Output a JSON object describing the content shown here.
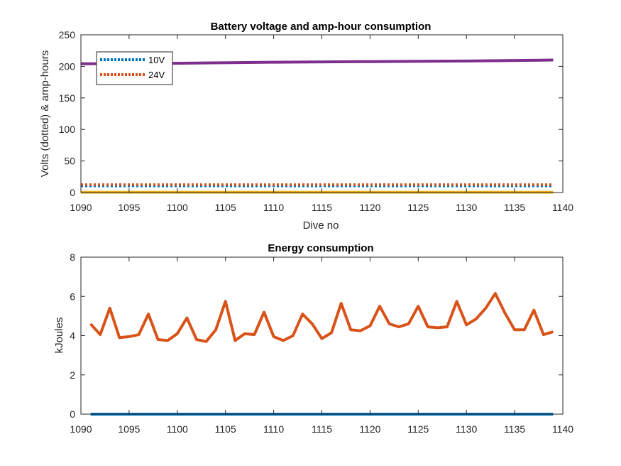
{
  "chart_data": [
    {
      "type": "line",
      "title": "Battery voltage and amp-hour consumption",
      "xlabel": "Dive no",
      "ylabel": "Volts (dotted) & amp-hours",
      "xlim": [
        1090,
        1140
      ],
      "ylim": [
        0,
        250
      ],
      "xticks": [
        1090,
        1095,
        1100,
        1105,
        1110,
        1115,
        1120,
        1125,
        1130,
        1135,
        1140
      ],
      "yticks": [
        0,
        50,
        100,
        150,
        200,
        250
      ],
      "grid": false,
      "legend_position": "top-left",
      "legend": [
        "10V",
        "24V"
      ],
      "series": [
        {
          "name": "10V",
          "style": "dotted",
          "color": "#0072BD",
          "x": [
            1090,
            1139
          ],
          "y": [
            10.5,
            10.5
          ]
        },
        {
          "name": "24V",
          "style": "dotted",
          "color": "#D95319",
          "x": [
            1090,
            1139
          ],
          "y": [
            12.5,
            12.5
          ]
        },
        {
          "style": "solid",
          "color": "#EDB120",
          "x": [
            1090,
            1139
          ],
          "y": [
            0.5,
            0.5
          ]
        },
        {
          "style": "solid",
          "color": "#7E2F8E",
          "x": [
            1090,
            1100,
            1110,
            1120,
            1130,
            1139
          ],
          "y": [
            204,
            205,
            206.5,
            207.5,
            208.5,
            210
          ]
        }
      ]
    },
    {
      "type": "line",
      "title": "Energy consumption",
      "xlabel": "",
      "ylabel": "kJoules",
      "xlim": [
        1090,
        1140
      ],
      "ylim": [
        0,
        8
      ],
      "xticks": [
        1090,
        1095,
        1100,
        1105,
        1110,
        1115,
        1120,
        1125,
        1130,
        1135,
        1140
      ],
      "yticks": [
        0,
        2,
        4,
        6,
        8
      ],
      "grid": false,
      "series": [
        {
          "style": "solid",
          "color": "#0072BD",
          "x": [
            1091,
            1139
          ],
          "y": [
            0,
            0
          ]
        },
        {
          "style": "solid",
          "color": "#D95319",
          "x": [
            1091,
            1092,
            1093,
            1094,
            1095,
            1096,
            1097,
            1098,
            1099,
            1100,
            1101,
            1102,
            1103,
            1104,
            1105,
            1106,
            1107,
            1108,
            1109,
            1110,
            1111,
            1112,
            1113,
            1114,
            1115,
            1116,
            1117,
            1118,
            1119,
            1120,
            1121,
            1122,
            1123,
            1124,
            1125,
            1126,
            1127,
            1128,
            1129,
            1130,
            1131,
            1132,
            1133,
            1134,
            1135,
            1136,
            1137,
            1138,
            1139
          ],
          "y": [
            4.6,
            4.05,
            5.4,
            3.9,
            3.95,
            4.05,
            5.1,
            3.8,
            3.75,
            4.1,
            4.9,
            3.8,
            3.7,
            4.3,
            5.75,
            3.75,
            4.1,
            4.05,
            5.2,
            3.95,
            3.75,
            4.0,
            5.1,
            4.6,
            3.85,
            4.15,
            5.65,
            4.3,
            4.25,
            4.5,
            5.5,
            4.6,
            4.45,
            4.6,
            5.5,
            4.45,
            4.4,
            4.45,
            5.75,
            4.55,
            4.85,
            5.4,
            6.15,
            5.15,
            4.3,
            4.3,
            5.3,
            4.05,
            4.2
          ]
        }
      ]
    }
  ]
}
